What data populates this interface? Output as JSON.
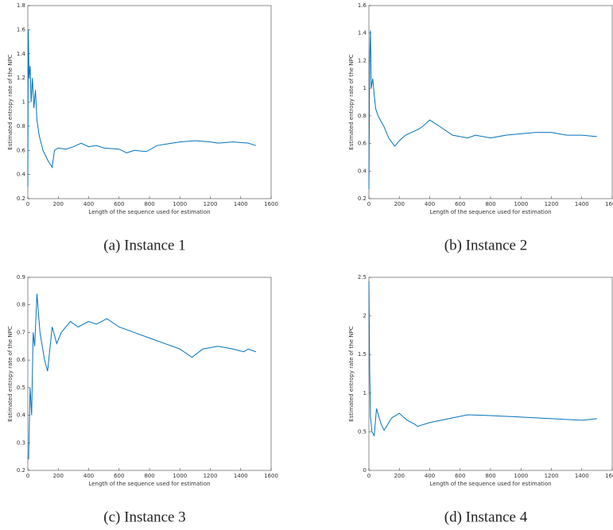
{
  "chart_data": [
    {
      "type": "line",
      "caption": "(a) Instance 1",
      "xlabel": "Length of the sequence used for estimation",
      "ylabel": "Estimated entropy rate of the NPC",
      "xlim": [
        0,
        1600
      ],
      "xticks": [
        0,
        200,
        400,
        600,
        800,
        1000,
        1200,
        1400,
        1600
      ],
      "ylim": [
        0.2,
        1.8
      ],
      "yticks": [
        0.2,
        0.4,
        0.6,
        0.8,
        1,
        1.2,
        1.4,
        1.6,
        1.8
      ],
      "series": [
        {
          "color": "#0072bd",
          "x": [
            0,
            3,
            8,
            15,
            22,
            30,
            40,
            50,
            60,
            75,
            100,
            130,
            160,
            175,
            200,
            250,
            300,
            350,
            400,
            450,
            500,
            600,
            650,
            700,
            780,
            850,
            900,
            1000,
            1100,
            1200,
            1250,
            1350,
            1450,
            1500
          ],
          "values": [
            0.3,
            1.6,
            1.2,
            1.3,
            1.0,
            1.2,
            0.95,
            1.1,
            0.85,
            0.72,
            0.6,
            0.52,
            0.46,
            0.6,
            0.62,
            0.61,
            0.63,
            0.66,
            0.63,
            0.64,
            0.62,
            0.61,
            0.58,
            0.6,
            0.59,
            0.64,
            0.65,
            0.67,
            0.68,
            0.67,
            0.66,
            0.67,
            0.66,
            0.64
          ]
        }
      ]
    },
    {
      "type": "line",
      "caption": "(b) Instance 2",
      "xlabel": "Length of the sequence used for estimation",
      "ylabel": "Estimated entropy rate of the NPC",
      "xlim": [
        0,
        1600
      ],
      "xticks": [
        0,
        200,
        400,
        600,
        800,
        1000,
        1200,
        1400,
        1600
      ],
      "ylim": [
        0.2,
        1.6
      ],
      "yticks": [
        0.2,
        0.4,
        0.6,
        0.8,
        1,
        1.2,
        1.4,
        1.6
      ],
      "series": [
        {
          "color": "#0072bd",
          "x": [
            0,
            5,
            10,
            15,
            25,
            35,
            45,
            60,
            80,
            100,
            130,
            170,
            200,
            240,
            280,
            320,
            350,
            400,
            470,
            550,
            650,
            700,
            800,
            900,
            1000,
            1100,
            1200,
            1300,
            1400,
            1500
          ],
          "values": [
            0.27,
            1.2,
            1.42,
            1.0,
            1.07,
            0.95,
            0.85,
            0.8,
            0.76,
            0.72,
            0.64,
            0.58,
            0.62,
            0.66,
            0.68,
            0.7,
            0.72,
            0.77,
            0.72,
            0.66,
            0.64,
            0.66,
            0.64,
            0.66,
            0.67,
            0.68,
            0.68,
            0.66,
            0.66,
            0.65
          ]
        }
      ]
    },
    {
      "type": "line",
      "caption": "(c) Instance 3",
      "xlabel": "Length of the sequence used for estimation",
      "ylabel": "Estimated entropy rate of the NPC",
      "xlim": [
        0,
        1600
      ],
      "xticks": [
        0,
        200,
        400,
        600,
        800,
        1000,
        1200,
        1400,
        1600
      ],
      "ylim": [
        0.2,
        0.9
      ],
      "yticks": [
        0.2,
        0.3,
        0.4,
        0.5,
        0.6,
        0.7,
        0.8,
        0.9
      ],
      "series": [
        {
          "color": "#0072bd",
          "x": [
            5,
            15,
            25,
            35,
            45,
            60,
            80,
            110,
            130,
            160,
            190,
            220,
            280,
            330,
            400,
            450,
            520,
            600,
            700,
            800,
            900,
            1000,
            1080,
            1150,
            1250,
            1350,
            1420,
            1450,
            1500
          ],
          "values": [
            0.24,
            0.5,
            0.4,
            0.7,
            0.65,
            0.84,
            0.7,
            0.6,
            0.56,
            0.72,
            0.66,
            0.7,
            0.74,
            0.72,
            0.74,
            0.73,
            0.75,
            0.72,
            0.7,
            0.68,
            0.66,
            0.64,
            0.61,
            0.64,
            0.65,
            0.64,
            0.63,
            0.64,
            0.63
          ]
        }
      ]
    },
    {
      "type": "line",
      "caption": "(d) Instance 4",
      "xlabel": "Length of the sequence used for estimation",
      "ylabel": "Estimated entropy rate of the NPC",
      "xlim": [
        0,
        1600
      ],
      "xticks": [
        0,
        200,
        400,
        600,
        800,
        1000,
        1200,
        1400,
        1600
      ],
      "ylim": [
        0,
        2.5
      ],
      "yticks": [
        0,
        0.5,
        1,
        1.5,
        2,
        2.5
      ],
      "series": [
        {
          "color": "#0072bd",
          "x": [
            0,
            5,
            10,
            20,
            35,
            50,
            80,
            100,
            150,
            200,
            250,
            300,
            320,
            400,
            500,
            650,
            800,
            1000,
            1200,
            1400,
            1500
          ],
          "values": [
            2.45,
            1.3,
            0.7,
            0.5,
            0.45,
            0.8,
            0.6,
            0.52,
            0.68,
            0.74,
            0.65,
            0.6,
            0.57,
            0.62,
            0.66,
            0.72,
            0.71,
            0.69,
            0.67,
            0.65,
            0.67
          ]
        }
      ]
    }
  ]
}
